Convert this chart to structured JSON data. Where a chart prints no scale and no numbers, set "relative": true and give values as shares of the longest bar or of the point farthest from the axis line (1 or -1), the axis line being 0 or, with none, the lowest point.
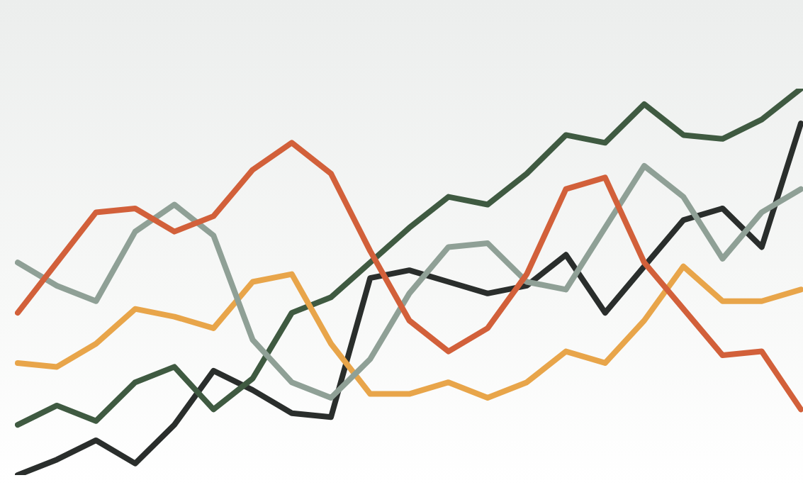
{
  "chart_data": {
    "type": "line",
    "relative": true,
    "categories": [
      null,
      null,
      null,
      null,
      null,
      null,
      null,
      null,
      null,
      null,
      null,
      null,
      null,
      null,
      null,
      null,
      null,
      null,
      null,
      null,
      null
    ],
    "series": [
      {
        "color": "#d2603a",
        "values": [
          0.42,
          0.55,
          0.68,
          0.69,
          0.63,
          0.67,
          0.79,
          0.86,
          0.78,
          0.58,
          0.4,
          0.32,
          0.38,
          0.52,
          0.74,
          0.77,
          0.55,
          0.43,
          0.31,
          0.32,
          0.17
        ]
      },
      {
        "color": "#8fa096",
        "values": [
          0.55,
          0.49,
          0.45,
          0.63,
          0.7,
          0.62,
          0.35,
          0.24,
          0.2,
          0.3,
          0.47,
          0.59,
          0.6,
          0.5,
          0.48,
          0.64,
          0.8,
          0.72,
          0.56,
          0.68,
          0.74
        ]
      },
      {
        "color": "#e8a54a",
        "values": [
          0.29,
          0.28,
          0.34,
          0.43,
          0.41,
          0.38,
          0.5,
          0.52,
          0.34,
          0.21,
          0.21,
          0.24,
          0.2,
          0.24,
          0.32,
          0.29,
          0.4,
          0.54,
          0.45,
          0.45,
          0.48
        ]
      },
      {
        "color": "#3f5a41",
        "values": [
          0.13,
          0.18,
          0.14,
          0.24,
          0.28,
          0.17,
          0.25,
          0.42,
          0.46,
          0.55,
          0.64,
          0.72,
          0.7,
          0.78,
          0.88,
          0.86,
          0.96,
          0.88,
          0.87,
          0.92,
          1.0
        ]
      },
      {
        "color": "#2a2e2c",
        "values": [
          0,
          0.04,
          0.09,
          0.03,
          0.13,
          0.27,
          0.22,
          0.16,
          0.15,
          0.51,
          0.53,
          0.5,
          0.47,
          0.49,
          0.57,
          0.42,
          0.54,
          0.66,
          0.69,
          0.59,
          0.91
        ]
      }
    ],
    "marker": "none",
    "line_style": "solid"
  }
}
